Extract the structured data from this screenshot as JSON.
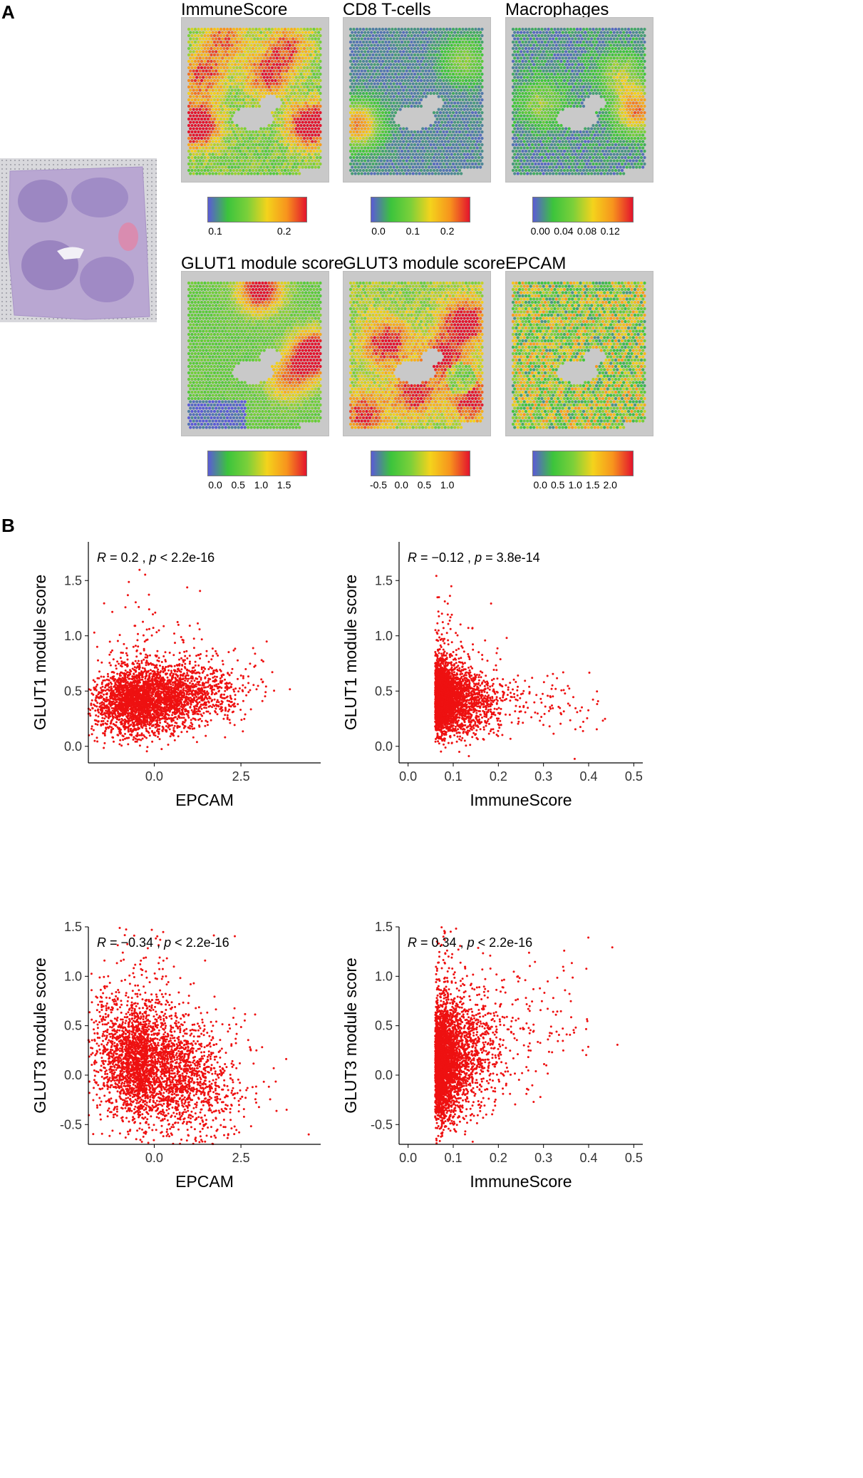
{
  "panels": {
    "a": "A",
    "b": "B"
  },
  "maps": [
    {
      "title": "ImmuneScore",
      "ticks": [
        "0.1",
        "0.2"
      ],
      "style": "immune"
    },
    {
      "title": "CD8 T-cells",
      "ticks": [
        "0.0",
        "0.1",
        "0.2"
      ],
      "style": "cd8"
    },
    {
      "title": "Macrophages",
      "ticks": [
        "0.00",
        "0.04",
        "0.08",
        "0.12"
      ],
      "style": "macro"
    },
    {
      "title": "GLUT1 module score",
      "ticks": [
        "0.0",
        "0.5",
        "1.0",
        "1.5"
      ],
      "style": "glut1"
    },
    {
      "title": "GLUT3 module score",
      "ticks": [
        "-0.5",
        "0.0",
        "0.5",
        "1.0"
      ],
      "style": "glut3"
    },
    {
      "title": "EPCAM",
      "ticks": [
        "0.0",
        "0.5",
        "1.0",
        "1.5",
        "2.0"
      ],
      "style": "epcam"
    }
  ],
  "colors": {
    "points": "#ee1111",
    "cmap": [
      "#5b5bd6",
      "#3cc43c",
      "#7bd03a",
      "#f4d31c",
      "#f7941d",
      "#e3142d"
    ]
  },
  "chart_data": [
    {
      "type": "scatter",
      "title": "",
      "xlabel": "EPCAM",
      "ylabel": "GLUT1 module score",
      "xlim": [
        -1.9,
        4.8
      ],
      "ylim": [
        -0.15,
        1.85
      ],
      "xticks": [
        0.0,
        2.5
      ],
      "yticks": [
        0.0,
        0.5,
        1.0,
        1.5
      ],
      "stat_r": "0.2",
      "stat_p": "< 2.2e-16",
      "point_summary": {
        "n": 3500,
        "x_center": -0.2,
        "x_spread": 0.9,
        "y_center": 0.43,
        "y_spread": 0.15,
        "corr": 0.2
      }
    },
    {
      "type": "scatter",
      "title": "",
      "xlabel": "ImmuneScore",
      "ylabel": "GLUT1 module score",
      "xlim": [
        -0.02,
        0.52
      ],
      "ylim": [
        -0.15,
        1.85
      ],
      "xticks": [
        0.0,
        0.1,
        0.2,
        0.3,
        0.4,
        0.5
      ],
      "yticks": [
        0.0,
        0.5,
        1.0,
        1.5
      ],
      "stat_r": "−0.12",
      "stat_p": "= 3.8e-14",
      "point_summary": {
        "n": 3500,
        "x_center": 0.06,
        "x_spread": 0.04,
        "y_center": 0.43,
        "y_spread": 0.15,
        "corr": -0.12
      }
    },
    {
      "type": "scatter",
      "title": "",
      "xlabel": "EPCAM",
      "ylabel": "GLUT3 module score",
      "xlim": [
        -1.9,
        4.8
      ],
      "ylim": [
        -0.7,
        1.5
      ],
      "xticks": [
        0.0,
        2.5
      ],
      "yticks": [
        -0.5,
        0.0,
        0.5,
        1.0,
        1.5
      ],
      "stat_r": "−0.34",
      "stat_p": "< 2.2e-16",
      "point_summary": {
        "n": 3500,
        "x_center": -0.2,
        "x_spread": 0.9,
        "y_center": 0.1,
        "y_spread": 0.3,
        "corr": -0.34
      }
    },
    {
      "type": "scatter",
      "title": "",
      "xlabel": "ImmuneScore",
      "ylabel": "GLUT3 module score",
      "xlim": [
        -0.02,
        0.52
      ],
      "ylim": [
        -0.7,
        1.5
      ],
      "xticks": [
        0.0,
        0.1,
        0.2,
        0.3,
        0.4,
        0.5
      ],
      "yticks": [
        -0.5,
        0.0,
        0.5,
        1.0,
        1.5
      ],
      "stat_r": "0.34",
      "stat_p": "< 2.2e-16",
      "point_summary": {
        "n": 3500,
        "x_center": 0.06,
        "x_spread": 0.04,
        "y_center": 0.1,
        "y_spread": 0.3,
        "corr": 0.34
      }
    }
  ]
}
